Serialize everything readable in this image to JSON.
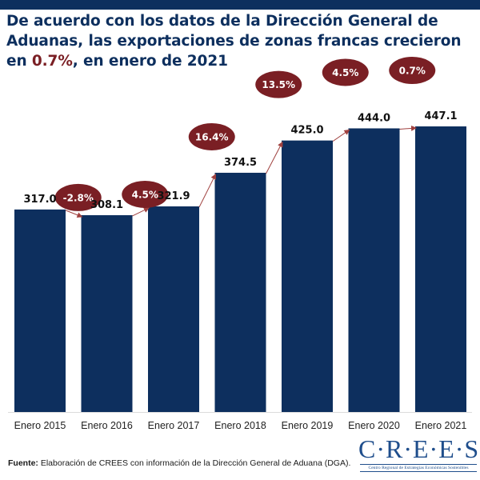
{
  "title": {
    "part1": "De acuerdo con los datos de la Dirección General de Aduanas, las exportaciones de zonas francas crecieron en ",
    "highlight": "0.7%",
    "part2": ", en enero de 2021"
  },
  "colors": {
    "bar": "#0d2f5e",
    "bubble": "#7a1f24",
    "arrow": "#a0413f",
    "title": "#0d2f5e",
    "highlight": "#7a1f24"
  },
  "chart_data": {
    "type": "bar",
    "title": "De acuerdo con los datos de la Dirección General de Aduanas, las exportaciones de zonas francas crecieron en 0.7%, en enero de 2021",
    "xlabel": "",
    "ylabel": "",
    "categories": [
      "Enero 2015",
      "Enero 2016",
      "Enero 2017",
      "Enero 2018",
      "Enero 2019",
      "Enero 2020",
      "Enero 2021"
    ],
    "values": [
      317.0,
      308.1,
      321.9,
      374.5,
      425.0,
      444.0,
      447.1
    ],
    "value_labels": [
      "317.0",
      "308.1",
      "321.9",
      "374.5",
      "425.0",
      "444.0",
      "447.1"
    ],
    "growth_labels": [
      "-2.8%",
      "4.5%",
      "16.4%",
      "13.5%",
      "4.5%",
      "0.7%"
    ],
    "ylim": [
      0,
      450
    ],
    "grid": false,
    "legend": "none"
  },
  "source": {
    "label": "Fuente:",
    "text": " Elaboración de CREES con información de la Dirección General de Aduana (DGA)."
  },
  "logo": {
    "main": "C·R·E·E·S",
    "sub": "Centro Regional de Estrategias Económicas Sostenibles"
  }
}
